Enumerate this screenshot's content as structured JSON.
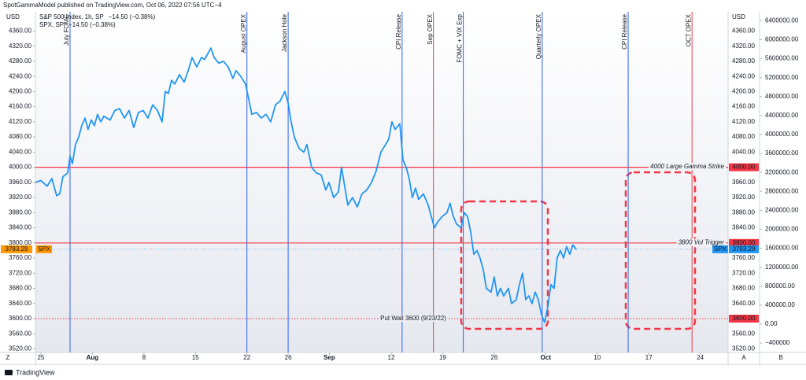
{
  "chart_data": {
    "type": "line",
    "header": "SpotGammaModel published on TradingView.com, Oct 06, 2022 07:56 UTC−4",
    "legend": [
      {
        "text": "S&P 500 Index, 1h, SP",
        "change": "−14.50 (−0.38%)",
        "color": "#2196f3"
      },
      {
        "text": "SPX, SP",
        "change": "−14.50 (−0.38%)",
        "color": "#ff9800"
      }
    ],
    "y_unit": "USD",
    "x": [
      -0.53,
      0,
      0.61,
      1.07,
      1.53,
      1.83,
      2.14,
      2.6,
      2.83,
      3.06,
      3.36,
      3.67,
      3.97,
      4.28,
      4.58,
      4.89,
      5.19,
      5.5,
      5.81,
      6.11,
      6.72,
      7.18,
      7.64,
      8.1,
      8.56,
      9.01,
      9.47,
      9.93,
      10.39,
      10.85,
      11.31,
      11.76,
      12.07,
      12.38,
      12.68,
      12.99,
      13.45,
      13.9,
      14.36,
      14.67,
      15.13,
      15.58,
      15.89,
      16.2,
      16.5,
      16.81,
      17.26,
      17.72,
      18.18,
      18.64,
      18.95,
      19.4,
      19.86,
      20.17,
      20.47,
      20.93,
      21.39,
      21.85,
      22.31,
      22.77,
      23.22,
      23.68,
      23.99,
      24.29,
      24.6,
      25.06,
      25.52,
      25.82,
      26.28,
      26.74,
      27.2,
      27.65,
      27.96,
      28.42,
      28.88,
      29.18,
      29.49,
      29.79,
      30.25,
      30.71,
      31.17,
      31.63,
      32.09,
      32.54,
      33,
      33.46,
      33.77,
      34.07,
      34.38,
      34.84,
      35.14,
      35.45,
      35.75,
      36.06,
      36.36,
      36.67,
      37.13,
      37.59,
      37.89,
      38.2,
      38.5,
      38.96,
      39.42,
      39.72,
      40.03,
      40.34,
      40.79,
      41.1,
      41.41,
      41.71,
      42.02,
      42.32,
      42.63,
      42.93,
      43.24,
      43.7,
      44,
      44.31,
      44.61,
      44.92,
      45.38,
      45.68,
      46.14,
      46.45,
      46.75,
      47.06,
      47.36,
      47.67,
      47.98,
      48.28,
      48.59,
      48.89,
      49.2,
      49.5,
      49.81,
      50.11,
      50.42,
      50.73,
      51.03,
      51.34,
      51.64,
      51.95
    ],
    "series": [
      {
        "name": "SPX",
        "color": "#2196f3",
        "values": [
          3960,
          3965,
          3950,
          3970,
          3925,
          3930,
          3975,
          3985,
          4030,
          4010,
          4060,
          4080,
          4110,
          4130,
          4100,
          4125,
          4110,
          4140,
          4120,
          4135,
          4125,
          4150,
          4155,
          4130,
          4150,
          4105,
          4145,
          4150,
          4130,
          4165,
          4150,
          4120,
          4200,
          4195,
          4230,
          4220,
          4245,
          4225,
          4260,
          4290,
          4265,
          4290,
          4285,
          4300,
          4315,
          4290,
          4275,
          4280,
          4265,
          4235,
          4255,
          4240,
          4220,
          4180,
          4140,
          4145,
          4130,
          4140,
          4120,
          4165,
          4175,
          4200,
          4170,
          4120,
          4080,
          4050,
          4040,
          4060,
          4000,
          3985,
          3980,
          3940,
          3960,
          3920,
          3935,
          4000,
          3950,
          3900,
          3920,
          3895,
          3930,
          3940,
          3960,
          3990,
          4040,
          4060,
          4075,
          4120,
          4100,
          4115,
          4020,
          4000,
          3970,
          3920,
          3945,
          3915,
          3930,
          3900,
          3870,
          3840,
          3855,
          3870,
          3880,
          3905,
          3870,
          3850,
          3840,
          3880,
          3870,
          3830,
          3770,
          3780,
          3760,
          3730,
          3680,
          3670,
          3710,
          3660,
          3680,
          3660,
          3680,
          3640,
          3650,
          3690,
          3720,
          3650,
          3660,
          3640,
          3670,
          3650,
          3610,
          3590,
          3630,
          3690,
          3680,
          3760,
          3780,
          3760,
          3790,
          3770,
          3795,
          3783.29
        ]
      }
    ],
    "last_value": 3783.29,
    "xlim": [
      -0.53,
      66.7
    ],
    "xticks": [
      {
        "value": 0,
        "label": "25"
      },
      {
        "value": 5,
        "label": "Aug"
      },
      {
        "value": 10,
        "label": "8"
      },
      {
        "value": 15,
        "label": "15"
      },
      {
        "value": 20,
        "label": "22"
      },
      {
        "value": 24,
        "label": "26"
      },
      {
        "value": 28,
        "label": "Sep"
      },
      {
        "value": 34,
        "label": "12"
      },
      {
        "value": 39,
        "label": "19"
      },
      {
        "value": 44,
        "label": "26"
      },
      {
        "value": 49,
        "label": "Oct"
      },
      {
        "value": 54,
        "label": "10"
      },
      {
        "value": 59,
        "label": "17"
      },
      {
        "value": 64,
        "label": "24"
      }
    ],
    "ylim": [
      3510.6,
      4410.8
    ],
    "yticks": [
      {
        "value": 3520,
        "label": "3520.00"
      },
      {
        "value": 3560,
        "label": "3560.00"
      },
      {
        "value": 3600,
        "label": "3600.00"
      },
      {
        "value": 3640,
        "label": "3640.00"
      },
      {
        "value": 3680,
        "label": "3680.00"
      },
      {
        "value": 3720,
        "label": "3720.00"
      },
      {
        "value": 3760,
        "label": "3760.00"
      },
      {
        "value": 3800,
        "label": "3800.00"
      },
      {
        "value": 3840,
        "label": "3840.00"
      },
      {
        "value": 3880,
        "label": "3880.00"
      },
      {
        "value": 3920,
        "label": "3920.00"
      },
      {
        "value": 3960,
        "label": "3960.00"
      },
      {
        "value": 4000,
        "label": "4000.00"
      },
      {
        "value": 4040,
        "label": "4040.00"
      },
      {
        "value": 4080,
        "label": "4080.00"
      },
      {
        "value": 4120,
        "label": "4120.00"
      },
      {
        "value": 4160,
        "label": "4160.00"
      },
      {
        "value": 4200,
        "label": "4200.00"
      },
      {
        "value": 4240,
        "label": "4240.00"
      },
      {
        "value": 4280,
        "label": "4280.00"
      },
      {
        "value": 4320,
        "label": "4320.00"
      },
      {
        "value": 4360,
        "label": "4360.00"
      }
    ],
    "y2lim": [
      -597500,
      6589200
    ],
    "y2ticks": [
      {
        "value": -400000,
        "label": "−400000"
      },
      {
        "value": 0,
        "label": "0.00"
      },
      {
        "value": 400000,
        "label": "400000.00"
      },
      {
        "value": 800000,
        "label": "800000.00"
      },
      {
        "value": 1200000,
        "label": "1200000.00"
      },
      {
        "value": 1600000,
        "label": "1600000.00"
      },
      {
        "value": 2000000,
        "label": "2000000.00"
      },
      {
        "value": 2400000,
        "label": "2400000.00"
      },
      {
        "value": 2800000,
        "label": "2800000.00"
      },
      {
        "value": 3200000,
        "label": "3200000.00"
      },
      {
        "value": 3600000,
        "label": "3600000.00"
      },
      {
        "value": 4000000,
        "label": "4000000.00"
      },
      {
        "value": 4400000,
        "label": "4400000.00"
      },
      {
        "value": 4800000,
        "label": "4800000.00"
      },
      {
        "value": 5200000,
        "label": "5200000.00"
      },
      {
        "value": 5600000,
        "label": "5600000.00"
      },
      {
        "value": 6000000,
        "label": "6000000.00"
      },
      {
        "value": 6400000,
        "label": "6400000.00"
      }
    ],
    "events": [
      {
        "x": 2.83,
        "label": "July FOMC",
        "color": "#2962ff"
      },
      {
        "x": 20.0,
        "label": "August OPEX",
        "color": "#2962ff"
      },
      {
        "x": 24.0,
        "label": "Jackson Hole",
        "color": "#2962ff"
      },
      {
        "x": 35.06,
        "label": "CPI Release",
        "color": "#2962ff"
      },
      {
        "x": 38.1,
        "label": "Sep OPEX",
        "color": "#f23645"
      },
      {
        "x": 41.0,
        "label": "FOMC + VIX Exp",
        "color": "#2962ff"
      },
      {
        "x": 48.66,
        "label": "Quarterly OPEX",
        "color": "#2962ff"
      },
      {
        "x": 57.0,
        "label": "CPI Release",
        "color": "#2962ff"
      },
      {
        "x": 63.2,
        "label": "OCT OPEX",
        "color": "#f23645"
      }
    ],
    "levels": [
      {
        "value": 4000,
        "label": "4000 Large Gamma Strike",
        "tag": "4000.00",
        "style": "solid",
        "color": "#f23645"
      },
      {
        "value": 3800,
        "label": "3800 Vol Trigger",
        "tag": "3800.00",
        "style": "solid",
        "color": "#f23645"
      },
      {
        "value": 3600,
        "label": "Put Wall 3600 (9/23/22)",
        "tag": "3600.00",
        "style": "dotted",
        "color": "#f23645"
      }
    ],
    "corner_labels": [
      "Z",
      "A",
      "B"
    ],
    "brand": "TradingView"
  }
}
